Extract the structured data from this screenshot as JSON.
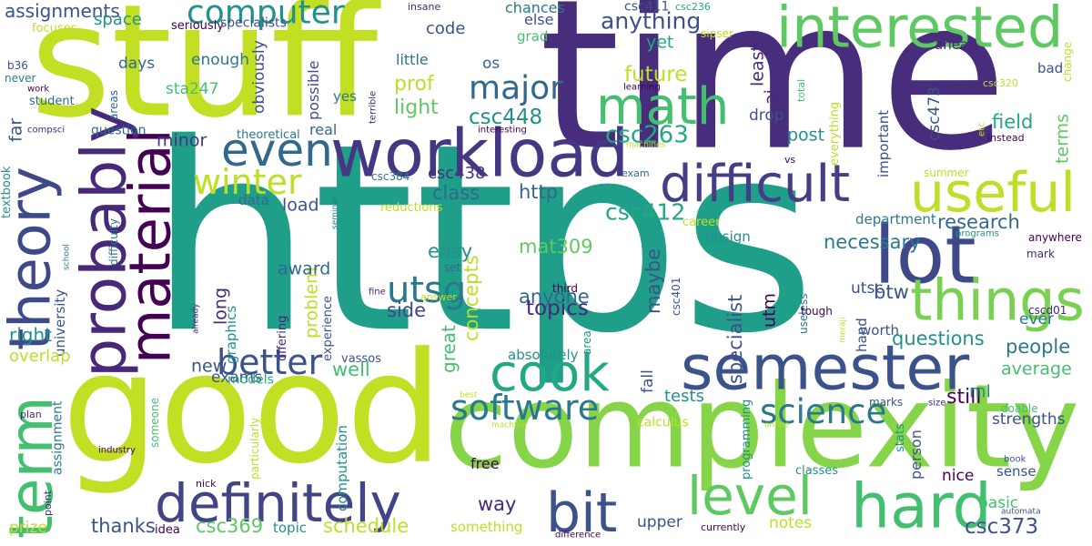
{
  "words": [
    "time",
    "https",
    "stuff",
    "good",
    "complexity",
    "semester",
    "workload",
    "interested",
    "math",
    "difficult",
    "useful",
    "lot",
    "things",
    "hard",
    "level",
    "bit",
    "definitely",
    "cook",
    "software",
    "science",
    "even",
    "computer",
    "material",
    "probably",
    "theory",
    "term",
    "utsg",
    "winter",
    "better",
    "major",
    "csc263",
    "csc448",
    "anything",
    "future",
    "csc412",
    "http",
    "class",
    "csc438",
    "mat309",
    "easy",
    "anyone",
    "topics",
    "concepts",
    "great",
    "side",
    "problem",
    "award",
    "load",
    "data",
    "long",
    "exams",
    "graphics",
    "new",
    "well",
    "thanks",
    "csc369",
    "schedule",
    "topic",
    "idea",
    "upper",
    "something",
    "way",
    "free",
    "notes",
    "csc373",
    "basic",
    "nice",
    "sense",
    "strengths",
    "still",
    "average",
    "people",
    "questions",
    "ever",
    "btw",
    "utsc",
    "necessary",
    "research",
    "department",
    "design",
    "career",
    "specialist",
    "maybe",
    "utm",
    "worth",
    "ml",
    "field",
    "terms",
    "csc473",
    "post",
    "drop",
    "ai",
    "least",
    "yet",
    "prof",
    "light",
    "os",
    "little",
    "possible",
    "obviously",
    "enough",
    "days",
    "sta247",
    "yes",
    "real",
    "theoretical",
    "minor",
    "question",
    "student",
    "assignments",
    "space",
    "focuses",
    "seriously",
    "specialists",
    "insane",
    "code",
    "chances",
    "else",
    "grad",
    "csc411",
    "csc236",
    "sipser",
    "ahead",
    "change",
    "bad",
    "csc320",
    "total",
    "learning",
    "important",
    "everything",
    "etc",
    "instead",
    "summer",
    "vs",
    "machines",
    "interesting",
    "exam",
    "seminar",
    "csc384",
    "reductions",
    "terrible",
    "work",
    "never",
    "b36",
    "areas",
    "compsci",
    "textbook",
    "far",
    "university",
    "right",
    "overlap",
    "assignment",
    "plan",
    "point",
    "prize",
    "industry",
    "someone",
    "school",
    "difficulty",
    "models",
    "particularly",
    "offering",
    "already",
    "fine",
    "vassos",
    "experience",
    "computation",
    "nick",
    "set",
    "answer",
    "third",
    "absolutely",
    "area",
    "fall",
    "tests",
    "csc401",
    "calculus",
    "programming",
    "machine",
    "best",
    "online",
    "classes",
    "difference",
    "currently",
    "useless",
    "tough",
    "meraji",
    "hand",
    "stats",
    "person",
    "marks",
    "doable",
    "size",
    "book",
    "automata",
    "cscd01",
    "mark",
    "anywhere",
    "programs"
  ]
}
